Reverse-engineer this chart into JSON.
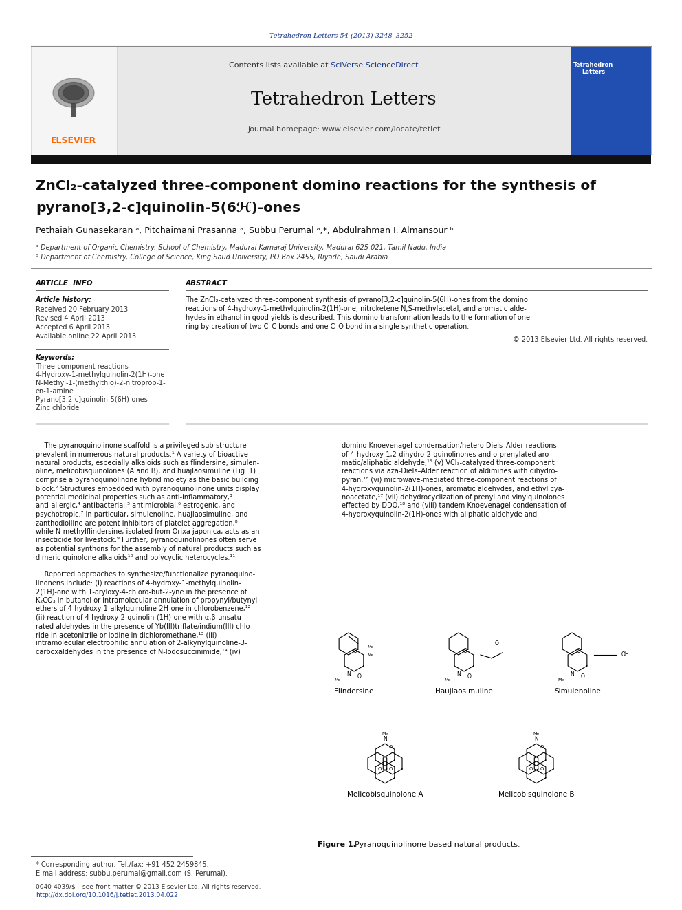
{
  "page_width": 9.92,
  "page_height": 13.23,
  "dpi": 100,
  "bg_color": "#ffffff",
  "top_journal_ref": "Tetrahedron Letters 54 (2013) 3248–3252",
  "journal_ref_color": "#1a3a8a",
  "header_bg": "#e8e8e8",
  "journal_title": "Tetrahedron Letters",
  "journal_homepage": "journal homepage: www.elsevier.com/locate/tetlet",
  "elsevier_color": "#FF6600",
  "dark_bar_color": "#111111",
  "article_title_line1": "ZnCl₂-catalyzed three-component domino reactions for the synthesis of",
  "article_title_line2": "pyrano[3,2-c]quinolin-5(6ℋ)-ones",
  "authors": "Pethaiah Gunasekaran ᵃ, Pitchaimani Prasanna ᵃ, Subbu Perumal ᵃ,*, Abdulrahman I. Almansour ᵇ",
  "affil_a": "ᵃ Department of Organic Chemistry, School of Chemistry, Madurai Kamaraj University, Madurai 625 021, Tamil Nadu, India",
  "affil_b": "ᵇ Department of Chemistry, College of Science, King Saud University, PO Box 2455, Riyadh, Saudi Arabia",
  "article_info_header": "ARTICLE  INFO",
  "abstract_header": "ABSTRACT",
  "article_history_label": "Article history:",
  "received": "Received 20 February 2013",
  "revised": "Revised 4 April 2013",
  "accepted": "Accepted 6 April 2013",
  "available": "Available online 22 April 2013",
  "keywords_label": "Keywords:",
  "keywords": [
    "Three-component reactions",
    "4-Hydroxy-1-methylquinolin-2(1H)-one",
    "N-Methyl-1-(methylthio)-2-nitroprop-1-",
    "en-1-amine",
    "Pyrano[3,2-c]quinolin-5(6H)-ones",
    "Zinc chloride"
  ],
  "abstract_lines": [
    "The ZnCl₂-catalyzed three-component synthesis of pyrano[3,2-c]quinolin-5(6H)-ones from the domino",
    "reactions of 4-hydroxy-1-methylquinolin-2(1H)-one, nitroketene N,S-methylacetal, and aromatic alde-",
    "hydes in ethanol in good yields is described. This domino transformation leads to the formation of one",
    "ring by creation of two C–C bonds and one C–O bond in a single synthetic operation."
  ],
  "copyright": "© 2013 Elsevier Ltd. All rights reserved.",
  "body_col1": [
    "    The pyranoquinolinone scaffold is a privileged sub-structure",
    "prevalent in numerous natural products.¹ A variety of bioactive",
    "natural products, especially alkaloids such as flindersine, simulen-",
    "oline, melicobisquinolones (A and B), and huajlaosimuline (Fig. 1)",
    "comprise a pyranoquinolinone hybrid moiety as the basic building",
    "block.² Structures embedded with pyranoquinolinone units display",
    "potential medicinal properties such as anti-inflammatory,³",
    "anti-allergic,⁴ antibacterial,⁵ antimicrobial,⁶ estrogenic, and",
    "psychotropic.⁷ In particular, simulenoline, huajlaosimuline, and",
    "zanthodioiline are potent inhibitors of platelet aggregation,⁸",
    "while N-methylflindersine, isolated from Orixa japonica, acts as an",
    "insecticide for livestock.⁹ Further, pyranoquinolinones often serve",
    "as potential synthons for the assembly of natural products such as",
    "dimeric quinolone alkaloids¹⁰ and polycyclic heterocycles.¹¹",
    "",
    "    Reported approaches to synthesize/functionalize pyranoquino-",
    "linonens include: (i) reactions of 4-hydroxy-1-methylquinolin-",
    "2(1H)-one with 1-aryloxy-4-chloro-but-2-yne in the presence of",
    "K₂CO₃ in butanol or intramolecular annulation of propynyl/butynyl",
    "ethers of 4-hydroxy-1-alkylquinoline-2H-one in chlorobenzene,¹²",
    "(ii) reaction of 4-hydroxy-2-quinolin-(1H)-one with α,β-unsatu-",
    "rated aldehydes in the presence of Yb(III)triflate/indium(III) chlo-",
    "ride in acetonitrile or iodine in dichloromethane,¹³ (iii)",
    "intramolecular electrophilic annulation of 2-alkynylquinoline-3-",
    "carboxaldehydes in the presence of N-Iodosuccinimide,¹⁴ (iv)"
  ],
  "body_col2": [
    "domino Knoevenagel condensation/hetero Diels–Alder reactions",
    "of 4-hydroxy-1,2-dihydro-2-quinolinones and o-prenylated aro-",
    "matic/aliphatic aldehyde,¹⁵ (v) VCl₃-catalyzed three-component",
    "reactions via aza-Diels–Alder reaction of aldimines with dihydro-",
    "pyran,¹⁶ (vi) microwave-mediated three-component reactions of",
    "4-hydroxyquinolin-2(1H)-ones, aromatic aldehydes, and ethyl cya-",
    "noacetate,¹⁷ (vii) dehydrocyclization of prenyl and vinylquinolones",
    "effected by DDQ,¹⁸ and (viii) tandem Knoevenagel condensation of",
    "4-hydroxyquinolin-2(1H)-ones with aliphatic aldehyde and"
  ],
  "fig1_labels": [
    "Flindersine",
    "Haujlaosimuline",
    "Simulenoline",
    "Melicobisquinolone A",
    "Melicobisquinolone B"
  ],
  "fig1_caption_bold": "Figure 1.",
  "fig1_caption_rest": "  Pyranoquinolinone based natural products.",
  "footnote_star": "* Corresponding author. Tel./fax: +91 452 2459845.",
  "footnote_email": "E-mail address: subbu.perumal@gmail.com (S. Perumal).",
  "footer_issn": "0040-4039/$ – see front matter © 2013 Elsevier Ltd. All rights reserved.",
  "footer_doi": "http://dx.doi.org/10.1016/j.tetlet.2013.04.022",
  "footer_doi_color": "#1a3a8a",
  "sciverse_color": "#1a3a8a"
}
